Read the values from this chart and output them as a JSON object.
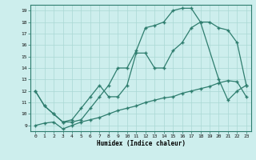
{
  "xlabel": "Humidex (Indice chaleur)",
  "xlim": [
    -0.5,
    23.5
  ],
  "ylim": [
    8.5,
    19.5
  ],
  "xticks": [
    0,
    1,
    2,
    3,
    4,
    5,
    6,
    7,
    8,
    9,
    10,
    11,
    12,
    13,
    14,
    15,
    16,
    17,
    18,
    19,
    20,
    21,
    22,
    23
  ],
  "yticks": [
    9,
    10,
    11,
    12,
    13,
    14,
    15,
    16,
    17,
    18,
    19
  ],
  "bg_color": "#cdeeed",
  "grid_color": "#aad8d4",
  "line_color": "#2e7d6e",
  "line1_x": [
    0,
    1,
    2,
    3,
    4,
    5,
    6,
    7,
    8,
    9,
    10,
    11,
    12,
    13,
    14,
    15,
    16,
    17,
    18,
    20,
    21,
    22,
    23
  ],
  "line1_y": [
    12.0,
    10.7,
    10.0,
    9.3,
    9.3,
    9.5,
    10.5,
    11.5,
    12.5,
    14.0,
    14.0,
    15.5,
    17.5,
    17.7,
    18.0,
    19.0,
    19.2,
    19.2,
    18.0,
    13.0,
    11.2,
    12.0,
    12.5
  ],
  "line2_x": [
    0,
    1,
    2,
    3,
    4,
    5,
    6,
    7,
    8,
    9,
    10,
    11,
    12,
    13,
    14,
    15,
    16,
    17,
    18,
    19,
    20,
    21,
    22,
    23
  ],
  "line2_y": [
    12.0,
    10.7,
    10.0,
    9.3,
    9.5,
    10.5,
    11.5,
    12.5,
    11.5,
    11.5,
    12.5,
    15.3,
    15.3,
    14.0,
    14.0,
    15.5,
    16.2,
    17.5,
    18.0,
    18.0,
    17.5,
    17.3,
    16.2,
    12.5
  ],
  "line3_x": [
    0,
    1,
    2,
    3,
    4,
    5,
    6,
    7,
    8,
    9,
    10,
    11,
    12,
    13,
    14,
    15,
    16,
    17,
    18,
    19,
    20,
    21,
    22,
    23
  ],
  "line3_y": [
    9.0,
    9.2,
    9.3,
    8.7,
    9.0,
    9.3,
    9.5,
    9.7,
    10.0,
    10.3,
    10.5,
    10.7,
    11.0,
    11.2,
    11.4,
    11.5,
    11.8,
    12.0,
    12.2,
    12.4,
    12.7,
    12.9,
    12.8,
    11.5
  ]
}
